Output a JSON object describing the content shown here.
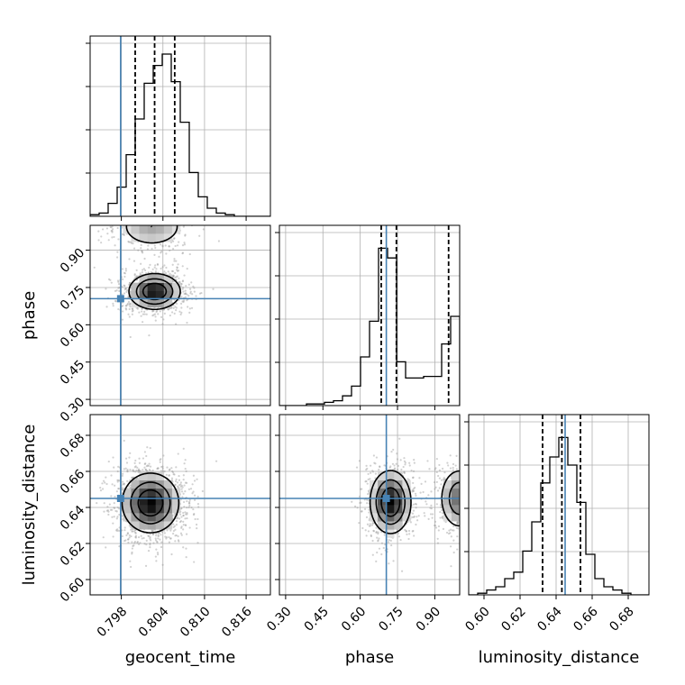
{
  "chart_data": {
    "type": "corner",
    "parameters": [
      "geocent_time",
      "phase",
      "luminosity_distance"
    ],
    "truth": {
      "geocent_time": 0.7979,
      "phase": 0.705,
      "luminosity_distance": 0.645
    },
    "truth_color": "#4682b4",
    "axes": {
      "geocent_time": {
        "range": [
          0.7935,
          0.8195
        ],
        "ticks": [
          "0.798",
          "0.804",
          "0.810",
          "0.816"
        ]
      },
      "phase": {
        "range": [
          0.275,
          1.0
        ],
        "ticks": [
          "0.30",
          "0.45",
          "0.60",
          "0.75",
          "0.90"
        ]
      },
      "luminosity_distance": {
        "range": [
          0.5915,
          0.6915
        ],
        "ticks": [
          "0.60",
          "0.62",
          "0.64",
          "0.66",
          "0.68"
        ]
      }
    },
    "marginals": {
      "geocent_time": {
        "edges": [
          0.7935,
          0.7948,
          0.7961,
          0.7974,
          0.7987,
          0.8,
          0.8013,
          0.8026,
          0.8039,
          0.8052,
          0.8065,
          0.8078,
          0.8091,
          0.8104,
          0.8117,
          0.813,
          0.8143,
          0.8156,
          0.8169,
          0.8182,
          0.8195
        ],
        "counts": [
          0.01,
          0.02,
          0.08,
          0.18,
          0.38,
          0.6,
          0.82,
          0.93,
          1.0,
          0.83,
          0.58,
          0.27,
          0.12,
          0.05,
          0.02,
          0.01,
          0.0,
          0.0,
          0.0,
          0.0
        ],
        "quantiles": [
          0.8,
          0.8028,
          0.8057
        ]
      },
      "phase": {
        "edges": [
          0.275,
          0.31125,
          0.3475,
          0.38375,
          0.42,
          0.45625,
          0.4925,
          0.52875,
          0.565,
          0.60125,
          0.6375,
          0.67375,
          0.71,
          0.74625,
          0.7825,
          0.81875,
          0.855,
          0.89125,
          0.9275,
          0.96375,
          1.0
        ],
        "counts": [
          0.0,
          0.0,
          0.0,
          0.01,
          0.01,
          0.02,
          0.03,
          0.06,
          0.12,
          0.3,
          0.52,
          0.97,
          0.91,
          0.27,
          0.17,
          0.17,
          0.18,
          0.18,
          0.38,
          0.55
        ],
        "quantiles": [
          0.6845,
          0.7455,
          0.9555
        ]
      },
      "luminosity_distance": {
        "edges": [
          0.5915,
          0.5965,
          0.6015,
          0.6065,
          0.6115,
          0.6165,
          0.6215,
          0.6265,
          0.6315,
          0.6365,
          0.6415,
          0.6465,
          0.6515,
          0.6565,
          0.6615,
          0.6665,
          0.6715,
          0.6765,
          0.6815,
          0.6865,
          0.6915
        ],
        "counts": [
          0.0,
          0.01,
          0.03,
          0.05,
          0.1,
          0.14,
          0.27,
          0.45,
          0.69,
          0.85,
          0.97,
          0.8,
          0.57,
          0.25,
          0.1,
          0.05,
          0.03,
          0.01,
          0.0,
          0.0
        ],
        "quantiles": [
          0.6325,
          0.6432,
          0.6535
        ]
      }
    },
    "pairs": [
      {
        "x": "geocent_time",
        "y": "phase",
        "modes": [
          {
            "x": 0.8028,
            "y": 0.734,
            "sx": 0.0018,
            "sy": 0.035,
            "w": 1.0
          },
          {
            "x": 0.8024,
            "y": 0.995,
            "sx": 0.0025,
            "sy": 0.045,
            "w": 0.35
          }
        ],
        "levels": [
          0.12,
          0.35,
          0.65
        ]
      },
      {
        "x": "geocent_time",
        "y": "luminosity_distance",
        "modes": [
          {
            "x": 0.8022,
            "y": 0.6425,
            "sx": 0.0021,
            "sy": 0.0085,
            "w": 1.0
          }
        ],
        "levels": [
          0.15,
          0.4,
          0.7
        ]
      },
      {
        "x": "phase",
        "y": "luminosity_distance",
        "modes": [
          {
            "x": 0.722,
            "y": 0.643,
            "sx": 0.04,
            "sy": 0.0085,
            "w": 1.0
          },
          {
            "x": 1.0,
            "y": 0.645,
            "sx": 0.04,
            "sy": 0.0085,
            "w": 0.6
          }
        ],
        "levels": [
          0.12,
          0.35,
          0.65
        ]
      }
    ],
    "grid": true,
    "diagonal_histogram_y_ticks": "unlabeled"
  }
}
